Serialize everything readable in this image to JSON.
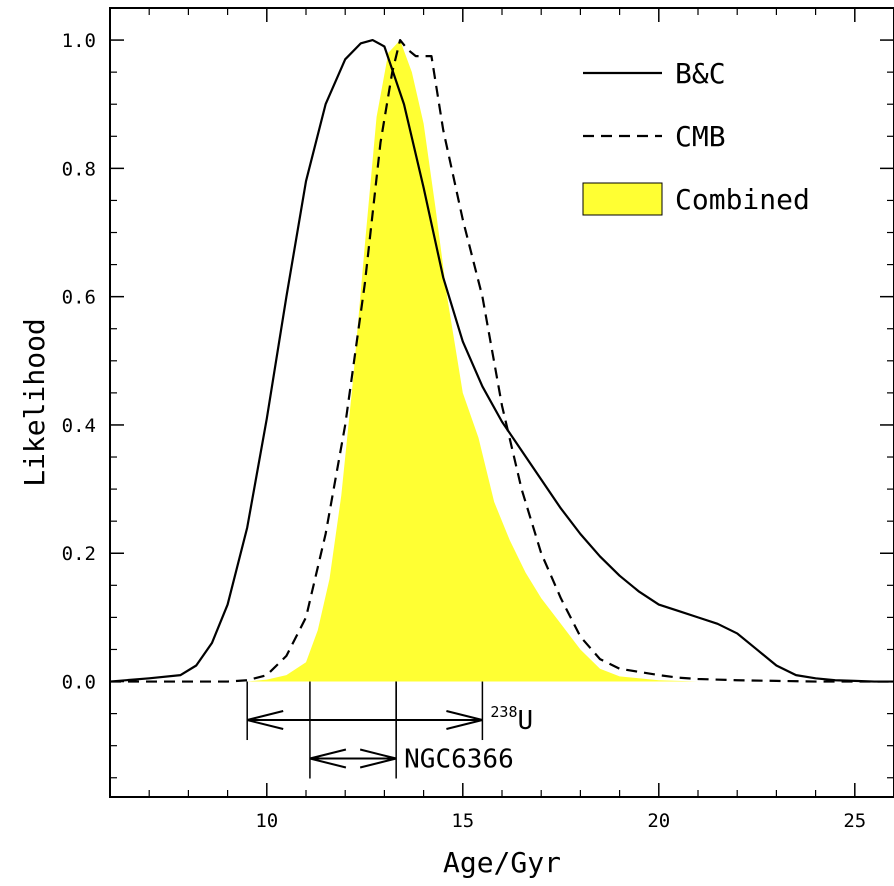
{
  "chart_data": {
    "type": "line",
    "title": "",
    "xlabel": "Age/Gyr",
    "ylabel": "Likelihood",
    "xlim": [
      6,
      26
    ],
    "ylim": [
      -0.18,
      1.05
    ],
    "grid": false,
    "legend_position": "top-right",
    "x_ticks": [
      10,
      15,
      20,
      25
    ],
    "x_tick_labels": [
      "10",
      "15",
      "20",
      "25"
    ],
    "y_ticks": [
      0.0,
      0.2,
      0.4,
      0.6,
      0.8,
      1.0
    ],
    "y_tick_labels": [
      "0.0",
      "0.2",
      "0.4",
      "0.6",
      "0.8",
      "1.0"
    ],
    "series": [
      {
        "name": "B&C",
        "style": "solid",
        "color": "#000000",
        "x": [
          6.0,
          7.0,
          7.8,
          8.2,
          8.6,
          9.0,
          9.5,
          10.0,
          10.5,
          11.0,
          11.5,
          12.0,
          12.4,
          12.7,
          13.0,
          13.5,
          14.0,
          14.5,
          15.0,
          15.5,
          16.0,
          16.5,
          17.0,
          17.5,
          18.0,
          18.5,
          19.0,
          19.5,
          20.0,
          20.5,
          21.0,
          21.5,
          22.0,
          22.5,
          23.0,
          23.5,
          24.0,
          24.5,
          25.0,
          25.5,
          26.0
        ],
        "y": [
          0.0,
          0.005,
          0.01,
          0.025,
          0.06,
          0.12,
          0.24,
          0.41,
          0.6,
          0.78,
          0.9,
          0.97,
          0.995,
          1.0,
          0.99,
          0.9,
          0.77,
          0.63,
          0.53,
          0.46,
          0.405,
          0.36,
          0.315,
          0.27,
          0.23,
          0.195,
          0.165,
          0.14,
          0.12,
          0.11,
          0.1,
          0.09,
          0.075,
          0.05,
          0.025,
          0.01,
          0.005,
          0.002,
          0.001,
          0.0,
          0.0
        ]
      },
      {
        "name": "CMB",
        "style": "dashed",
        "color": "#000000",
        "x": [
          6.0,
          9.0,
          9.5,
          10.0,
          10.5,
          11.0,
          11.5,
          12.0,
          12.5,
          12.9,
          13.2,
          13.4,
          13.6,
          13.8,
          14.2,
          14.5,
          15.0,
          15.5,
          16.0,
          16.5,
          17.0,
          17.5,
          18.0,
          18.5,
          19.0,
          19.5,
          20.0,
          20.5,
          21.0,
          22.0,
          23.0,
          24.0,
          25.0,
          26.0
        ],
        "y": [
          0.0,
          0.0,
          0.002,
          0.01,
          0.04,
          0.1,
          0.23,
          0.4,
          0.62,
          0.84,
          0.95,
          1.0,
          0.985,
          0.975,
          0.975,
          0.86,
          0.72,
          0.6,
          0.43,
          0.3,
          0.2,
          0.13,
          0.07,
          0.035,
          0.02,
          0.015,
          0.01,
          0.006,
          0.004,
          0.002,
          0.001,
          0.0,
          0.0,
          0.0
        ]
      },
      {
        "name": "Combined",
        "style": "filled",
        "color": "#ffff33",
        "x": [
          6.0,
          9.5,
          10.0,
          10.5,
          11.0,
          11.3,
          11.6,
          11.9,
          12.2,
          12.5,
          12.8,
          13.1,
          13.4,
          13.7,
          14.0,
          14.3,
          14.6,
          15.0,
          15.4,
          15.8,
          16.2,
          16.6,
          17.0,
          17.5,
          18.0,
          18.5,
          19.0,
          20.0,
          21.0,
          26.0
        ],
        "y": [
          0.0,
          0.0,
          0.003,
          0.01,
          0.03,
          0.08,
          0.16,
          0.29,
          0.47,
          0.68,
          0.88,
          0.98,
          1.0,
          0.95,
          0.87,
          0.74,
          0.6,
          0.45,
          0.38,
          0.28,
          0.22,
          0.17,
          0.13,
          0.09,
          0.05,
          0.02,
          0.008,
          0.002,
          0.0,
          0.0
        ]
      }
    ],
    "annotations": [
      {
        "label_base": "",
        "label_sup": "238",
        "label_main": "U",
        "low": 9.5,
        "center": 13.3,
        "high": 15.5,
        "y": -0.06
      },
      {
        "label_base": "",
        "label_sup": "",
        "label_main": "NGC6366",
        "low": 11.1,
        "center": 13.3,
        "high": 13.3,
        "y": -0.12
      }
    ]
  },
  "legend": {
    "items": [
      {
        "label": "B&C",
        "style": "solid"
      },
      {
        "label": "CMB",
        "style": "dashed"
      },
      {
        "label": "Combined",
        "style": "filled",
        "color": "#ffff33"
      }
    ]
  }
}
